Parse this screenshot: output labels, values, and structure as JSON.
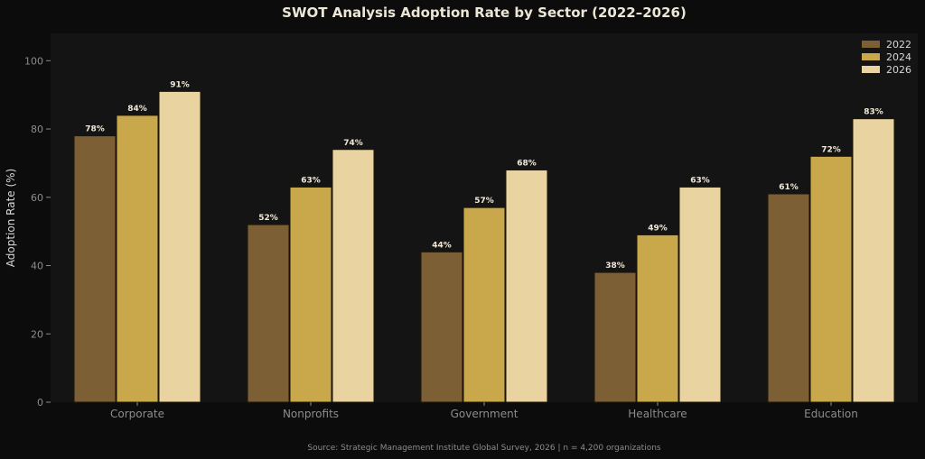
{
  "chart_data": {
    "type": "bar",
    "title": "SWOT Analysis Adoption Rate by Sector (2022–2026)",
    "ylabel": "Adoption Rate (%)",
    "xlabel": "",
    "ylim": [
      0,
      108
    ],
    "yticks": [
      0,
      20,
      40,
      60,
      80,
      100
    ],
    "categories": [
      "Corporate",
      "Nonprofits",
      "Government",
      "Healthcare",
      "Education"
    ],
    "series": [
      {
        "name": "2022",
        "color": "#7d5f36",
        "values": [
          78,
          52,
          44,
          38,
          61
        ]
      },
      {
        "name": "2024",
        "color": "#c9a84c",
        "values": [
          84,
          63,
          57,
          49,
          72
        ]
      },
      {
        "name": "2026",
        "color": "#e8d3a1",
        "values": [
          91,
          74,
          68,
          63,
          83
        ]
      }
    ],
    "value_suffix": "%",
    "legend_position": "top-right",
    "grid": false,
    "source": "Source: Strategic Management Institute Global Survey, 2026  |  n = 4,200 organizations"
  },
  "colors": {
    "page_background": "#0c0c0c",
    "plot_background": "#141414"
  }
}
